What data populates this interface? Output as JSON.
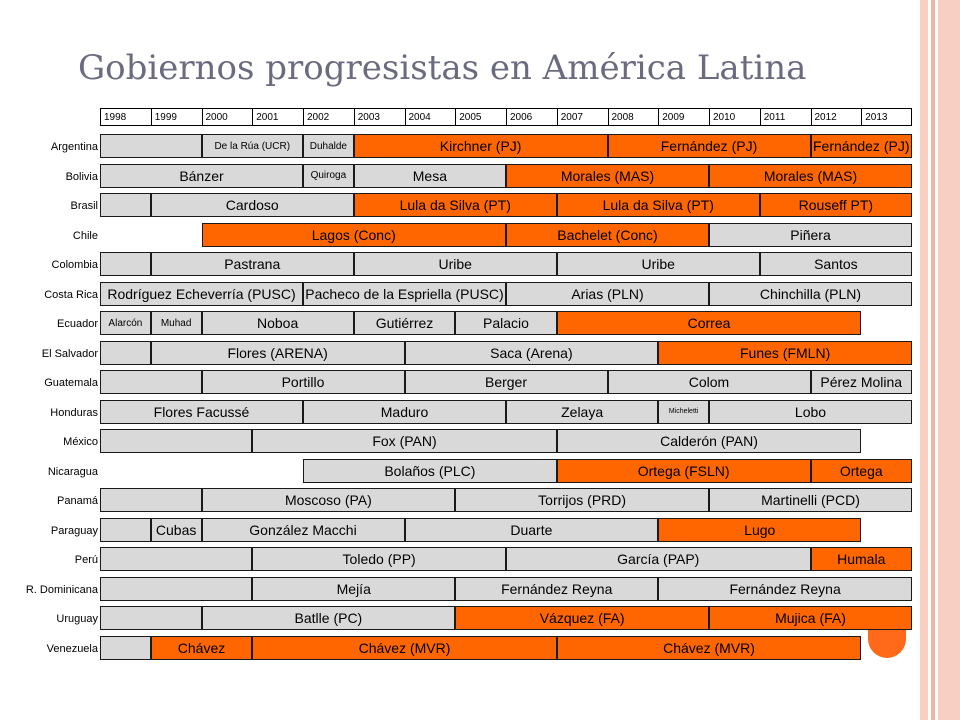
{
  "title": "Gobiernos progresistas en América Latina",
  "colors": {
    "progressive": "#ff6600",
    "other": "#d9d9d9"
  },
  "years": [
    "1998",
    "1999",
    "2000",
    "2001",
    "2002",
    "2003",
    "2004",
    "2005",
    "2006",
    "2007",
    "2008",
    "2009",
    "2010",
    "2011",
    "2012",
    "2013"
  ],
  "countries": [
    {
      "name": "Argentina",
      "governments": [
        {
          "label": "",
          "start": 1998,
          "end": 1999,
          "color": "gray"
        },
        {
          "label": "De la Rúa (UCR)",
          "start": 2000,
          "end": 2001,
          "color": "gray",
          "size": "s"
        },
        {
          "label": "Duhalde",
          "start": 2002,
          "end": 2002,
          "color": "gray",
          "size": "s"
        },
        {
          "label": "Kirchner (PJ)",
          "start": 2003,
          "end": 2007,
          "color": "orange"
        },
        {
          "label": "Fernández (PJ)",
          "start": 2008,
          "end": 2011,
          "color": "orange"
        },
        {
          "label": "Fernández (PJ)",
          "start": 2012,
          "end": 2013,
          "color": "orange"
        }
      ]
    },
    {
      "name": "Bolivia",
      "governments": [
        {
          "label": "Bánzer",
          "start": 1998,
          "end": 2001,
          "color": "gray"
        },
        {
          "label": "Quiroga",
          "start": 2002,
          "end": 2002,
          "color": "gray",
          "size": "s"
        },
        {
          "label": "Mesa",
          "start": 2003,
          "end": 2005,
          "color": "gray"
        },
        {
          "label": "Morales (MAS)",
          "start": 2006,
          "end": 2009,
          "color": "orange"
        },
        {
          "label": "Morales (MAS)",
          "start": 2010,
          "end": 2013,
          "color": "orange"
        }
      ]
    },
    {
      "name": "Brasil",
      "governments": [
        {
          "label": "",
          "start": 1998,
          "end": 1998,
          "color": "gray"
        },
        {
          "label": "Cardoso",
          "start": 1999,
          "end": 2002,
          "color": "gray"
        },
        {
          "label": "Lula da Silva (PT)",
          "start": 2003,
          "end": 2006,
          "color": "orange"
        },
        {
          "label": "Lula da Silva (PT)",
          "start": 2007,
          "end": 2010,
          "color": "orange"
        },
        {
          "label": "Rouseff PT)",
          "start": 2011,
          "end": 2013,
          "color": "orange"
        }
      ]
    },
    {
      "name": "Chile",
      "governments": [
        {
          "label": "",
          "start": 1998,
          "end": 1999,
          "color": "white"
        },
        {
          "label": "Lagos (Conc)",
          "start": 2000,
          "end": 2005,
          "color": "orange"
        },
        {
          "label": "Bachelet (Conc)",
          "start": 2006,
          "end": 2009,
          "color": "orange"
        },
        {
          "label": "Piñera",
          "start": 2010,
          "end": 2013,
          "color": "gray"
        }
      ]
    },
    {
      "name": "Colombia",
      "governments": [
        {
          "label": "",
          "start": 1998,
          "end": 1998,
          "color": "gray"
        },
        {
          "label": "Pastrana",
          "start": 1999,
          "end": 2002,
          "color": "gray"
        },
        {
          "label": "Uribe",
          "start": 2003,
          "end": 2006,
          "color": "gray"
        },
        {
          "label": "Uribe",
          "start": 2007,
          "end": 2010,
          "color": "gray"
        },
        {
          "label": "Santos",
          "start": 2011,
          "end": 2013,
          "color": "gray"
        }
      ]
    },
    {
      "name": "Costa Rica",
      "governments": [
        {
          "label": "Rodríguez Echeverría (PUSC)",
          "start": 1998,
          "end": 2001,
          "color": "gray"
        },
        {
          "label": "Pacheco de la Espriella (PUSC)",
          "start": 2002,
          "end": 2005,
          "color": "gray"
        },
        {
          "label": "Arias (PLN)",
          "start": 2006,
          "end": 2009,
          "color": "gray"
        },
        {
          "label": "Chinchilla (PLN)",
          "start": 2010,
          "end": 2013,
          "color": "gray"
        }
      ]
    },
    {
      "name": "Ecuador",
      "governments": [
        {
          "label": "Alarcón",
          "start": 1998,
          "end": 1998,
          "color": "gray",
          "size": "s"
        },
        {
          "label": "Muhad",
          "start": 1999,
          "end": 1999,
          "color": "gray",
          "size": "s"
        },
        {
          "label": "Noboa",
          "start": 2000,
          "end": 2002,
          "color": "gray"
        },
        {
          "label": "Gutiérrez",
          "start": 2003,
          "end": 2004,
          "color": "gray"
        },
        {
          "label": "Palacio",
          "start": 2005,
          "end": 2006,
          "color": "gray"
        },
        {
          "label": "Correa",
          "start": 2007,
          "end": 2012,
          "color": "orange"
        }
      ]
    },
    {
      "name": "El Salvador",
      "governments": [
        {
          "label": "",
          "start": 1998,
          "end": 1998,
          "color": "gray"
        },
        {
          "label": "Flores (ARENA)",
          "start": 1999,
          "end": 2003,
          "color": "gray"
        },
        {
          "label": "Saca (Arena)",
          "start": 2004,
          "end": 2008,
          "color": "gray"
        },
        {
          "label": "Funes (FMLN)",
          "start": 2009,
          "end": 2013,
          "color": "orange"
        }
      ]
    },
    {
      "name": "Guatemala",
      "governments": [
        {
          "label": "",
          "start": 1998,
          "end": 1999,
          "color": "gray"
        },
        {
          "label": "Portillo",
          "start": 2000,
          "end": 2003,
          "color": "gray"
        },
        {
          "label": "Berger",
          "start": 2004,
          "end": 2007,
          "color": "gray"
        },
        {
          "label": "Colom",
          "start": 2008,
          "end": 2011,
          "color": "gray"
        },
        {
          "label": "Pérez Molina",
          "start": 2012,
          "end": 2013,
          "color": "gray"
        }
      ]
    },
    {
      "name": "Honduras",
      "governments": [
        {
          "label": "Flores Facussé",
          "start": 1998,
          "end": 2001,
          "color": "gray"
        },
        {
          "label": "Maduro",
          "start": 2002,
          "end": 2005,
          "color": "gray"
        },
        {
          "label": "Zelaya",
          "start": 2006,
          "end": 2008,
          "color": "gray"
        },
        {
          "label": "Micheletti",
          "start": 2009,
          "end": 2009,
          "color": "gray",
          "size": "xs"
        },
        {
          "label": "Lobo",
          "start": 2010,
          "end": 2013,
          "color": "gray"
        }
      ]
    },
    {
      "name": "México",
      "governments": [
        {
          "label": "",
          "start": 1998,
          "end": 2000,
          "color": "gray"
        },
        {
          "label": "Fox (PAN)",
          "start": 2001,
          "end": 2006,
          "color": "gray"
        },
        {
          "label": "Calderón (PAN)",
          "start": 2007,
          "end": 2012,
          "color": "gray"
        }
      ]
    },
    {
      "name": "Nicaragua",
      "governments": [
        {
          "label": "",
          "start": 1998,
          "end": 2001,
          "color": "white"
        },
        {
          "label": "Bolaños (PLC)",
          "start": 2002,
          "end": 2006,
          "color": "gray"
        },
        {
          "label": "Ortega (FSLN)",
          "start": 2007,
          "end": 2011,
          "color": "orange"
        },
        {
          "label": "Ortega",
          "start": 2012,
          "end": 2013,
          "color": "orange"
        }
      ]
    },
    {
      "name": "Panamá",
      "governments": [
        {
          "label": "",
          "start": 1998,
          "end": 1999,
          "color": "gray"
        },
        {
          "label": "Moscoso (PA)",
          "start": 2000,
          "end": 2004,
          "color": "gray"
        },
        {
          "label": "Torrijos (PRD)",
          "start": 2005,
          "end": 2009,
          "color": "gray"
        },
        {
          "label": "Martinelli (PCD)",
          "start": 2010,
          "end": 2013,
          "color": "gray"
        }
      ]
    },
    {
      "name": "Paraguay",
      "governments": [
        {
          "label": "",
          "start": 1998,
          "end": 1998,
          "color": "gray"
        },
        {
          "label": "Cubas",
          "start": 1999,
          "end": 1999,
          "color": "gray"
        },
        {
          "label": "González Macchi",
          "start": 2000,
          "end": 2003,
          "color": "gray"
        },
        {
          "label": "Duarte",
          "start": 2004,
          "end": 2008,
          "color": "gray"
        },
        {
          "label": "Lugo",
          "start": 2009,
          "end": 2012,
          "color": "orange"
        }
      ]
    },
    {
      "name": "Perú",
      "governments": [
        {
          "label": "",
          "start": 1998,
          "end": 2000,
          "color": "gray"
        },
        {
          "label": "Toledo (PP)",
          "start": 2001,
          "end": 2005,
          "color": "gray"
        },
        {
          "label": "García (PAP)",
          "start": 2006,
          "end": 2011,
          "color": "gray"
        },
        {
          "label": "Humala",
          "start": 2012,
          "end": 2013,
          "color": "orange"
        }
      ]
    },
    {
      "name": "R. Dominicana",
      "governments": [
        {
          "label": "",
          "start": 1998,
          "end": 2000,
          "color": "gray"
        },
        {
          "label": "Mejía",
          "start": 2001,
          "end": 2004,
          "color": "gray"
        },
        {
          "label": "Fernández Reyna",
          "start": 2005,
          "end": 2008,
          "color": "gray"
        },
        {
          "label": "Fernández Reyna",
          "start": 2009,
          "end": 2013,
          "color": "gray"
        }
      ]
    },
    {
      "name": "Uruguay",
      "governments": [
        {
          "label": "",
          "start": 1998,
          "end": 1999,
          "color": "gray"
        },
        {
          "label": "Batlle (PC)",
          "start": 2000,
          "end": 2004,
          "color": "gray"
        },
        {
          "label": "Vázquez (FA)",
          "start": 2005,
          "end": 2009,
          "color": "orange"
        },
        {
          "label": "Mujica (FA)",
          "start": 2010,
          "end": 2013,
          "color": "orange"
        }
      ]
    },
    {
      "name": "Venezuela",
      "governments": [
        {
          "label": "",
          "start": 1998,
          "end": 1998,
          "color": "gray"
        },
        {
          "label": "Chávez",
          "start": 1999,
          "end": 2000,
          "color": "orange"
        },
        {
          "label": "Chávez (MVR)",
          "start": 2001,
          "end": 2006,
          "color": "orange"
        },
        {
          "label": "Chávez (MVR)",
          "start": 2007,
          "end": 2012,
          "color": "orange"
        }
      ]
    }
  ]
}
